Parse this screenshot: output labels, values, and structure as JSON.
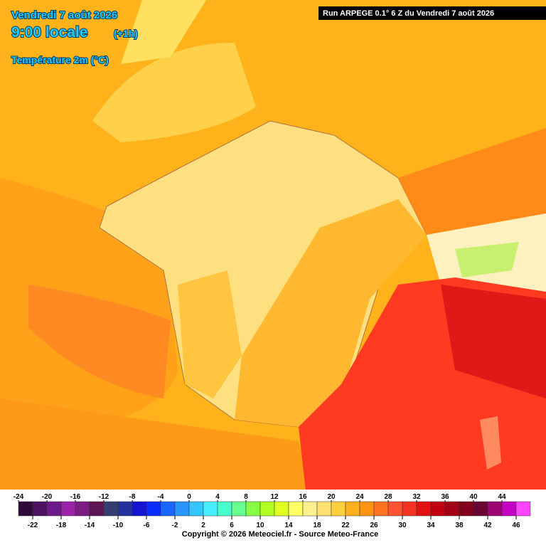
{
  "header": {
    "date": "Vendredi 7 août 2026",
    "time": "9:00 locale",
    "offset": "(+1h)",
    "variable": "Température 2m (°C)",
    "run": "Run ARPEGE 0.1° 6 Z du Vendredi 7 août 2026"
  },
  "legend": {
    "ticks": [
      -24,
      -22,
      -20,
      -18,
      -16,
      -14,
      -12,
      -10,
      -8,
      -6,
      -4,
      -2,
      0,
      2,
      4,
      6,
      8,
      10,
      12,
      14,
      16,
      18,
      20,
      22,
      24,
      26,
      28,
      30,
      32,
      34,
      36,
      38,
      40,
      42,
      44,
      46
    ],
    "colors": [
      "#2e0a3a",
      "#4c1262",
      "#6e1a8c",
      "#9a22a8",
      "#7c1c80",
      "#5c1452",
      "#343e70",
      "#22329c",
      "#1414d2",
      "#0a2cff",
      "#1a66ff",
      "#2896ff",
      "#34c4ff",
      "#48eeff",
      "#48ffcc",
      "#66ff90",
      "#86ff44",
      "#b4ff22",
      "#e2ff22",
      "#ffff66",
      "#fff08e",
      "#ffe070",
      "#ffcf42",
      "#ffb020",
      "#ff9412",
      "#ff7222",
      "#ff5232",
      "#f23222",
      "#e01212",
      "#c20012",
      "#a20014",
      "#82001c",
      "#6a0434",
      "#9c0474",
      "#c402c4",
      "#ff44ff"
    ]
  },
  "footer": {
    "copyright": "Copyright © 2026 Meteociel.fr - Source Meteo-France"
  }
}
